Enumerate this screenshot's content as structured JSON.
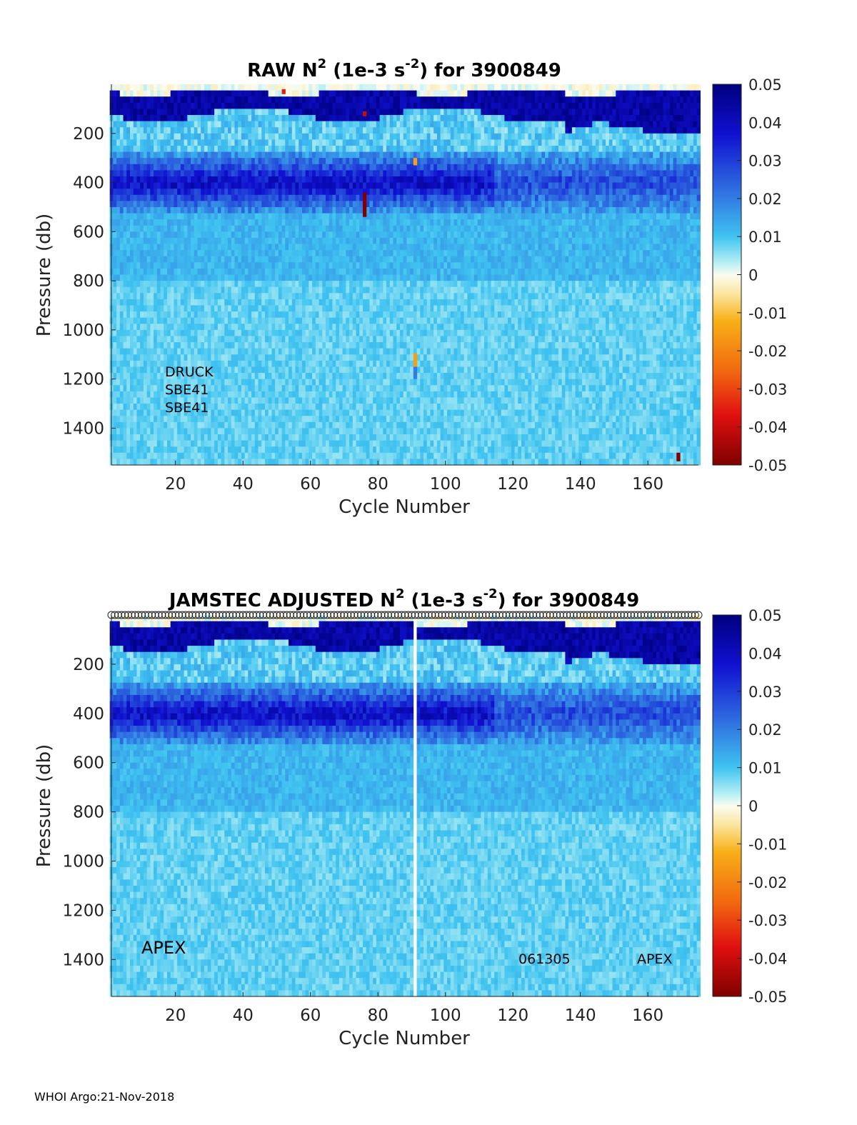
{
  "footer": "WHOI Argo:21-Nov-2018",
  "colorbar": {
    "ticks": [
      "0.05",
      "0.04",
      "0.03",
      "0.02",
      "0.01",
      "0",
      "-0.01",
      "-0.02",
      "-0.03",
      "-0.04",
      "-0.05"
    ],
    "range": [
      -0.05,
      0.05
    ],
    "colormap": "jet-like diverging (dark red → red → orange → white → cyan → blue → dark blue)"
  },
  "chart_data": [
    {
      "type": "heatmap",
      "title": {
        "main": "RAW N",
        "sup1": "2",
        "mid": " (1e-3 s",
        "sup2": "-2",
        "end": ") for 3900849"
      },
      "xlabel": "Cycle Number",
      "ylabel": "Pressure (db)",
      "xticks": [
        20,
        40,
        60,
        80,
        100,
        120,
        140,
        160
      ],
      "yticks": [
        200,
        400,
        600,
        800,
        1000,
        1200,
        1400
      ],
      "xlim": [
        1,
        175
      ],
      "ylim": [
        0,
        1550
      ],
      "clim": [
        -0.05,
        0.05
      ],
      "annotations": [
        "DRUCK",
        "SBE41",
        "SBE41"
      ]
    },
    {
      "type": "heatmap",
      "title": {
        "main": "JAMSTEC  ADJUSTED N",
        "sup1": "2",
        "mid": " (1e-3 s",
        "sup2": "-2",
        "end": ") for 3900849"
      },
      "xlabel": "Cycle Number",
      "ylabel": "Pressure (db)",
      "xticks": [
        20,
        40,
        60,
        80,
        100,
        120,
        140,
        160
      ],
      "yticks": [
        200,
        400,
        600,
        800,
        1000,
        1200,
        1400
      ],
      "xlim": [
        1,
        175
      ],
      "ylim": [
        0,
        1550
      ],
      "clim": [
        -0.05,
        0.05
      ],
      "annotations": [
        "APEX",
        "061305",
        "APEX"
      ],
      "gap_cycle": 91
    }
  ]
}
